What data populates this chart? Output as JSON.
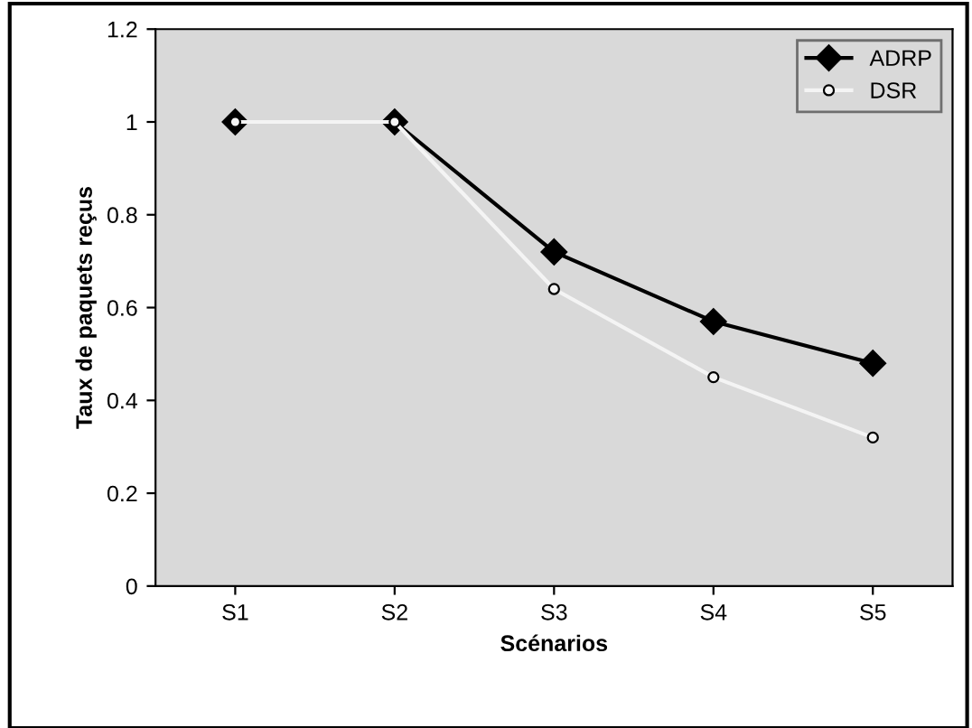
{
  "chart_data": {
    "type": "line",
    "xlabel": "Scénarios",
    "ylabel": "Taux de paquets reçus",
    "categories": [
      "S1",
      "S2",
      "S3",
      "S4",
      "S5"
    ],
    "series": [
      {
        "name": "ADRP",
        "color": "#000000",
        "marker": "diamond",
        "values": [
          1,
          1,
          0.72,
          0.57,
          0.48
        ]
      },
      {
        "name": "DSR",
        "color": "#f4f4f4",
        "marker": "circle",
        "values": [
          1,
          1,
          0.64,
          0.45,
          0.32
        ]
      }
    ],
    "ylim": [
      0,
      1.2
    ],
    "yticks": [
      0,
      0.2,
      0.4,
      0.6,
      0.8,
      1,
      1.2
    ],
    "grid": false,
    "legend": "top right",
    "line_style": "solid"
  }
}
